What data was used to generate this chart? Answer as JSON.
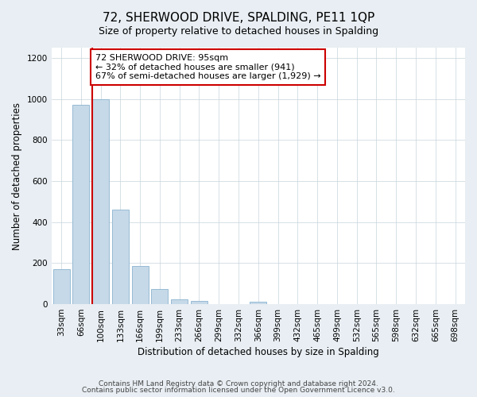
{
  "title": "72, SHERWOOD DRIVE, SPALDING, PE11 1QP",
  "subtitle": "Size of property relative to detached houses in Spalding",
  "xlabel": "Distribution of detached houses by size in Spalding",
  "ylabel": "Number of detached properties",
  "bar_labels": [
    "33sqm",
    "66sqm",
    "100sqm",
    "133sqm",
    "166sqm",
    "199sqm",
    "233sqm",
    "266sqm",
    "299sqm",
    "332sqm",
    "366sqm",
    "399sqm",
    "432sqm",
    "465sqm",
    "499sqm",
    "532sqm",
    "565sqm",
    "598sqm",
    "632sqm",
    "665sqm",
    "698sqm"
  ],
  "bar_values": [
    170,
    970,
    1000,
    460,
    185,
    75,
    25,
    15,
    0,
    0,
    10,
    0,
    0,
    0,
    0,
    0,
    0,
    0,
    0,
    0,
    0
  ],
  "bar_color": "#c6d9e8",
  "bar_edge_color": "#8ab4d0",
  "property_line_color": "#cc0000",
  "annotation_line1": "72 SHERWOOD DRIVE: 95sqm",
  "annotation_line2": "← 32% of detached houses are smaller (941)",
  "annotation_line3": "67% of semi-detached houses are larger (1,929) →",
  "annotation_box_color": "#ffffff",
  "annotation_box_edge_color": "#cc0000",
  "ylim": [
    0,
    1250
  ],
  "yticks": [
    0,
    200,
    400,
    600,
    800,
    1000,
    1200
  ],
  "footer_line1": "Contains HM Land Registry data © Crown copyright and database right 2024.",
  "footer_line2": "Contains public sector information licensed under the Open Government Licence v3.0.",
  "background_color": "#e8eef3",
  "plot_background_color": "#ffffff",
  "grid_color": "#c8d4dc",
  "title_fontsize": 11,
  "subtitle_fontsize": 9,
  "axis_label_fontsize": 8.5,
  "tick_fontsize": 7.5,
  "annotation_fontsize": 8,
  "footer_fontsize": 6.5
}
